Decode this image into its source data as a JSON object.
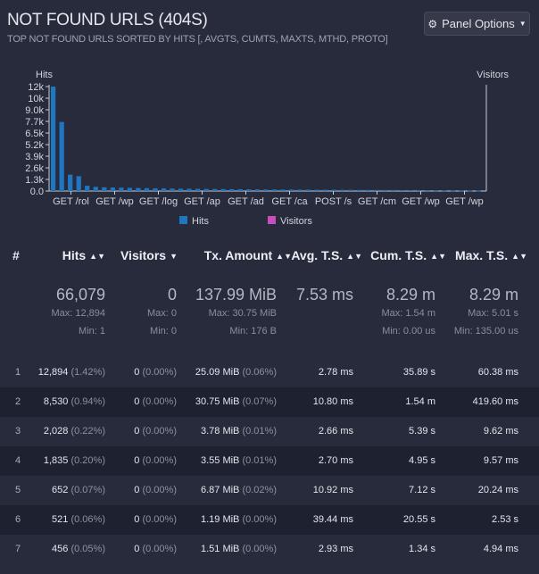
{
  "panel": {
    "title": "NOT FOUND URLS (404S)",
    "subtitle": "TOP NOT FOUND URLS SORTED BY HITS [, AVGTS, CUMTS, MAXTS, MTHD, PROTO]",
    "options_label": "Panel Options",
    "options_icon": "gear-icon",
    "caret_icon": "caret-down-icon"
  },
  "chart_data": {
    "type": "bar",
    "left_axis_label": "Hits",
    "right_axis_label": "Visitors",
    "y_ticks": [
      "0.0",
      "1.3k",
      "2.6k",
      "3.9k",
      "5.2k",
      "6.5k",
      "7.7k",
      "9.0k",
      "10k",
      "12k"
    ],
    "ylim": [
      0,
      12894
    ],
    "x_tick_labels": [
      "GET /rol",
      "GET /wp",
      "GET /log",
      "GET /ap",
      "GET /ad",
      "GET /ca",
      "POST /s",
      "GET /cm",
      "GET /wp",
      "GET /wp"
    ],
    "legend": [
      {
        "name": "Hits",
        "color": "#1f77c2"
      },
      {
        "name": "Visitors",
        "color": "#c84ec0"
      }
    ],
    "series": [
      {
        "name": "Hits",
        "color": "#1f77c2",
        "values": [
          12894,
          8530,
          2028,
          1835,
          652,
          521,
          456,
          430,
          410,
          390,
          370,
          350,
          335,
          320,
          305,
          290,
          280,
          270,
          260,
          250,
          240,
          230,
          220,
          210,
          200,
          195,
          190,
          185,
          180,
          175,
          170,
          165,
          160,
          155,
          150,
          145,
          140,
          135,
          130,
          125,
          120,
          115,
          110,
          105,
          100,
          95,
          90,
          85,
          80,
          75,
          70
        ]
      },
      {
        "name": "Visitors",
        "color": "#c84ec0",
        "values": [
          0,
          0,
          0,
          0,
          0,
          0,
          0,
          0,
          0,
          0,
          0,
          0,
          0,
          0,
          0,
          0,
          0,
          0,
          0,
          0,
          0,
          0,
          0,
          0,
          0,
          0,
          0,
          0,
          0,
          0,
          0,
          0,
          0,
          0,
          0,
          0,
          0,
          0,
          0,
          0,
          0,
          0,
          0,
          0,
          0,
          0,
          0,
          0,
          0,
          0,
          0
        ]
      }
    ]
  },
  "table": {
    "columns": {
      "index": "#",
      "hits": "Hits",
      "visitors": "Visitors",
      "tx": "Tx. Amount",
      "avg": "Avg. T.S.",
      "cum": "Cum. T.S.",
      "max": "Max. T.S."
    },
    "summary": {
      "hits": {
        "value": "66,079",
        "max": "Max: 12,894",
        "min": "Min: 1"
      },
      "visitors": {
        "value": "0",
        "max": "Max: 0",
        "min": "Min: 0"
      },
      "tx": {
        "value": "137.99 MiB",
        "max": "Max: 30.75 MiB",
        "min": "Min: 176 B"
      },
      "avg": {
        "value": "7.53 ms"
      },
      "cum": {
        "value": "8.29 m",
        "max": "Max: 1.54 m",
        "min": "Min: 0.00 us"
      },
      "max": {
        "value": "8.29 m",
        "max": "Max: 5.01 s",
        "min": "Min: 135.00 us"
      }
    },
    "rows": [
      {
        "idx": "1",
        "hits": "12,894",
        "hits_pct": "(1.42%)",
        "vis": "0",
        "vis_pct": "(0.00%)",
        "tx": "25.09 MiB",
        "tx_pct": "(0.06%)",
        "avg": "2.78 ms",
        "cum": "35.89 s",
        "max": "60.38 ms"
      },
      {
        "idx": "2",
        "hits": "8,530",
        "hits_pct": "(0.94%)",
        "vis": "0",
        "vis_pct": "(0.00%)",
        "tx": "30.75 MiB",
        "tx_pct": "(0.07%)",
        "avg": "10.80 ms",
        "cum": "1.54 m",
        "max": "419.60 ms"
      },
      {
        "idx": "3",
        "hits": "2,028",
        "hits_pct": "(0.22%)",
        "vis": "0",
        "vis_pct": "(0.00%)",
        "tx": "3.78 MiB",
        "tx_pct": "(0.01%)",
        "avg": "2.66 ms",
        "cum": "5.39 s",
        "max": "9.62 ms"
      },
      {
        "idx": "4",
        "hits": "1,835",
        "hits_pct": "(0.20%)",
        "vis": "0",
        "vis_pct": "(0.00%)",
        "tx": "3.55 MiB",
        "tx_pct": "(0.01%)",
        "avg": "2.70 ms",
        "cum": "4.95 s",
        "max": "9.57 ms"
      },
      {
        "idx": "5",
        "hits": "652",
        "hits_pct": "(0.07%)",
        "vis": "0",
        "vis_pct": "(0.00%)",
        "tx": "6.87 MiB",
        "tx_pct": "(0.02%)",
        "avg": "10.92 ms",
        "cum": "7.12 s",
        "max": "20.24 ms"
      },
      {
        "idx": "6",
        "hits": "521",
        "hits_pct": "(0.06%)",
        "vis": "0",
        "vis_pct": "(0.00%)",
        "tx": "1.19 MiB",
        "tx_pct": "(0.00%)",
        "avg": "39.44 ms",
        "cum": "20.55 s",
        "max": "2.53 s"
      },
      {
        "idx": "7",
        "hits": "456",
        "hits_pct": "(0.05%)",
        "vis": "0",
        "vis_pct": "(0.00%)",
        "tx": "1.51 MiB",
        "tx_pct": "(0.00%)",
        "avg": "2.93 ms",
        "cum": "1.34 s",
        "max": "4.94 ms"
      }
    ]
  }
}
